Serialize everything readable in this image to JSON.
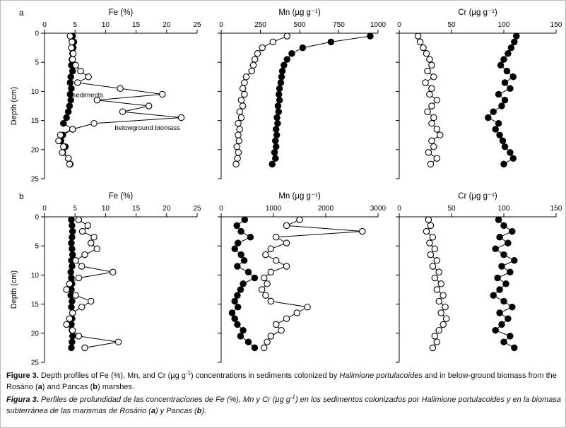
{
  "figure": {
    "ylabel": "Depth (cm)",
    "panel_labels": [
      "a",
      "b"
    ],
    "series_names": [
      "sediments",
      "belowground biomass"
    ],
    "colors": {
      "filled_marker": "#000000",
      "open_marker_fill": "#ffffff",
      "line": "#000000"
    }
  },
  "chart_data": [
    {
      "type": "scatter",
      "panel_letter": "a",
      "title": "Fe (%)",
      "xlim": [
        0,
        25
      ],
      "xticks": [
        0,
        5,
        10,
        15,
        20,
        25
      ],
      "ylim": [
        0,
        25
      ],
      "yticks": [
        0,
        5,
        10,
        15,
        20,
        25
      ],
      "show_y_tick_labels": true,
      "ylabel": "Depth (cm)",
      "series": [
        {
          "name": "sediments",
          "marker": "filled",
          "depths": [
            0.5,
            1.5,
            2.5,
            3.5,
            4.5,
            5.5,
            6.5,
            7.5,
            8.5,
            9.5,
            10.5,
            11.5,
            12.5,
            13.5,
            14.5,
            15.5,
            16.5,
            17.5,
            18.5,
            19.5,
            20.5,
            21.5,
            22.5
          ],
          "values": [
            4.6,
            4.8,
            4.7,
            4.6,
            4.5,
            4.4,
            4.6,
            4.3,
            4.2,
            4.4,
            4.2,
            4.3,
            4.1,
            3.9,
            3.6,
            3.1,
            4.6,
            3.0,
            2.7,
            3.4,
            3.0,
            3.9,
            4.2
          ]
        },
        {
          "name": "belowground biomass",
          "marker": "open",
          "depths": [
            0.5,
            1.5,
            2.5,
            3.5,
            4.5,
            5.5,
            6.5,
            7.5,
            8.5,
            9.5,
            10.5,
            11.5,
            12.5,
            13.5,
            14.5,
            15.5,
            16.5,
            17.5,
            18.5,
            19.5,
            20.5,
            21.5,
            22.5
          ],
          "values": [
            4.2,
            4.5,
            4.4,
            4.7,
            4.6,
            5.1,
            5.9,
            7.2,
            5.4,
            12.4,
            19.3,
            8.6,
            17.1,
            12.8,
            22.4,
            8.1,
            4.6,
            2.6,
            2.3,
            3.1,
            2.9,
            3.9,
            4.1
          ]
        }
      ],
      "annotations": [
        {
          "text": "sediments",
          "x": 4.6,
          "y": 11.0
        },
        {
          "text": "belowground biomass",
          "x": 11.5,
          "y": 16.6
        }
      ]
    },
    {
      "type": "scatter",
      "title": "Mn (µg g⁻¹)",
      "xlim": [
        0,
        1000
      ],
      "xticks": [
        0,
        250,
        500,
        750,
        1000
      ],
      "ylim": [
        0,
        25
      ],
      "yticks": [
        0,
        5,
        10,
        15,
        20,
        25
      ],
      "show_y_tick_labels": false,
      "series": [
        {
          "name": "sediments",
          "marker": "filled",
          "depths": [
            0.5,
            1.5,
            2.5,
            3.5,
            4.5,
            5.5,
            6.5,
            7.5,
            8.5,
            9.5,
            10.5,
            11.5,
            12.5,
            13.5,
            14.5,
            15.5,
            16.5,
            17.5,
            18.5,
            19.5,
            20.5,
            21.5,
            22.5
          ],
          "values": [
            950,
            700,
            520,
            450,
            420,
            400,
            390,
            385,
            380,
            372,
            368,
            372,
            362,
            366,
            356,
            360,
            350,
            354,
            346,
            350,
            340,
            346,
            325
          ]
        },
        {
          "name": "belowground biomass",
          "marker": "open",
          "depths": [
            0.5,
            1.5,
            2.5,
            3.5,
            4.5,
            5.5,
            6.5,
            7.5,
            8.5,
            9.5,
            10.5,
            11.5,
            12.5,
            13.5,
            14.5,
            15.5,
            16.5,
            17.5,
            18.5,
            19.5,
            20.5,
            21.5,
            22.5
          ],
          "values": [
            420,
            330,
            262,
            232,
            215,
            205,
            195,
            160,
            148,
            138,
            148,
            128,
            138,
            118,
            128,
            108,
            118,
            108,
            114,
            100,
            110,
            104,
            95
          ]
        }
      ],
      "annotations": []
    },
    {
      "type": "scatter",
      "title": "Cr (µg g⁻¹)",
      "xlim": [
        0,
        150
      ],
      "xticks": [
        0,
        50,
        100,
        150
      ],
      "ylim": [
        0,
        25
      ],
      "yticks": [
        0,
        5,
        10,
        15,
        20,
        25
      ],
      "show_y_tick_labels": false,
      "series": [
        {
          "name": "sediments",
          "marker": "filled",
          "depths": [
            0.5,
            1.5,
            2.5,
            3.5,
            4.5,
            5.5,
            6.5,
            7.5,
            8.5,
            9.5,
            10.5,
            11.5,
            12.5,
            13.5,
            14.5,
            15.5,
            16.5,
            17.5,
            18.5,
            19.5,
            20.5,
            21.5,
            22.5
          ],
          "values": [
            112,
            110,
            107,
            104,
            100,
            97,
            103,
            109,
            101,
            106,
            95,
            101,
            98,
            90,
            85,
            95,
            92,
            96,
            99,
            101,
            106,
            109,
            100
          ]
        },
        {
          "name": "belowground biomass",
          "marker": "open",
          "depths": [
            0.5,
            1.5,
            2.5,
            3.5,
            4.5,
            5.5,
            6.5,
            7.5,
            8.5,
            9.5,
            10.5,
            11.5,
            12.5,
            13.5,
            14.5,
            15.5,
            16.5,
            17.5,
            18.5,
            19.5,
            20.5,
            21.5,
            22.5
          ],
          "values": [
            18,
            20,
            23,
            26,
            29,
            31,
            27,
            33,
            25,
            31,
            29,
            36,
            31,
            27,
            33,
            31,
            36,
            39,
            31,
            33,
            28,
            36,
            30
          ]
        }
      ],
      "annotations": []
    },
    {
      "type": "scatter",
      "panel_letter": "b",
      "title": "Fe (%)",
      "xlim": [
        0,
        25
      ],
      "xticks": [
        0,
        5,
        10,
        15,
        20,
        25
      ],
      "ylim": [
        0,
        25
      ],
      "yticks": [
        0,
        5,
        10,
        15,
        20,
        25
      ],
      "show_y_tick_labels": true,
      "ylabel": "Depth (cm)",
      "series": [
        {
          "name": "sediments",
          "marker": "filled",
          "depths": [
            0.5,
            1.5,
            2.5,
            3.5,
            4.5,
            5.5,
            6.5,
            7.5,
            8.5,
            9.5,
            10.5,
            11.5,
            12.5,
            13.5,
            14.5,
            15.5,
            16.5,
            17.5,
            18.5,
            19.5,
            20.5,
            21.5,
            22.5
          ],
          "values": [
            4.4,
            4.5,
            4.6,
            4.5,
            4.4,
            4.5,
            4.6,
            4.4,
            4.5,
            4.3,
            4.4,
            4.5,
            4.4,
            4.3,
            4.5,
            4.4,
            4.6,
            4.5,
            4.4,
            4.5,
            4.6,
            4.5,
            4.4
          ]
        },
        {
          "name": "belowground biomass",
          "marker": "open",
          "depths": [
            0.5,
            1.5,
            2.5,
            3.5,
            4.5,
            5.5,
            6.5,
            7.5,
            8.5,
            9.5,
            10.5,
            11.5,
            12.5,
            13.5,
            14.5,
            15.5,
            16.5,
            17.5,
            18.5,
            19.5,
            20.5,
            21.5,
            22.5
          ],
          "values": [
            5.6,
            7.1,
            6.2,
            8.1,
            7.6,
            8.6,
            6.6,
            5.1,
            6.1,
            11.2,
            5.6,
            4.1,
            3.6,
            5.1,
            7.6,
            6.1,
            4.6,
            4.1,
            3.6,
            4.6,
            5.6,
            12.1,
            6.6
          ]
        }
      ],
      "annotations": []
    },
    {
      "type": "scatter",
      "title": "Mn (µg g⁻¹)",
      "xlim": [
        0,
        3000
      ],
      "xticks": [
        0,
        1000,
        2000,
        3000
      ],
      "ylim": [
        0,
        25
      ],
      "yticks": [
        0,
        5,
        10,
        15,
        20,
        25
      ],
      "show_y_tick_labels": false,
      "series": [
        {
          "name": "sediments",
          "marker": "filled",
          "depths": [
            0.5,
            1.5,
            2.5,
            3.5,
            4.5,
            5.5,
            6.5,
            7.5,
            8.5,
            9.5,
            10.5,
            11.5,
            12.5,
            13.5,
            14.5,
            15.5,
            16.5,
            17.5,
            18.5,
            19.5,
            20.5,
            21.5,
            22.5
          ],
          "values": [
            450,
            300,
            380,
            560,
            320,
            260,
            380,
            440,
            310,
            520,
            640,
            420,
            370,
            310,
            260,
            320,
            210,
            260,
            310,
            420,
            370,
            520,
            640
          ]
        },
        {
          "name": "belowground biomass",
          "marker": "open",
          "depths": [
            0.5,
            1.5,
            2.5,
            3.5,
            4.5,
            5.5,
            6.5,
            7.5,
            8.5,
            9.5,
            10.5,
            11.5,
            12.5,
            13.5,
            14.5,
            15.5,
            16.5,
            17.5,
            18.5,
            19.5,
            20.5,
            21.5,
            22.5
          ],
          "values": [
            1500,
            1250,
            2700,
            1050,
            1250,
            950,
            850,
            1050,
            1250,
            950,
            820,
            880,
            780,
            850,
            950,
            1650,
            1450,
            1250,
            1050,
            1150,
            950,
            880,
            820
          ]
        }
      ],
      "annotations": []
    },
    {
      "type": "scatter",
      "title": "Cr (µg g⁻¹)",
      "xlim": [
        0,
        150
      ],
      "xticks": [
        0,
        50,
        100,
        150
      ],
      "ylim": [
        0,
        25
      ],
      "yticks": [
        0,
        5,
        10,
        15,
        20,
        25
      ],
      "show_y_tick_labels": false,
      "series": [
        {
          "name": "sediments",
          "marker": "filled",
          "depths": [
            0.5,
            1.5,
            2.5,
            3.5,
            4.5,
            5.5,
            6.5,
            7.5,
            8.5,
            9.5,
            10.5,
            11.5,
            12.5,
            13.5,
            14.5,
            15.5,
            16.5,
            17.5,
            18.5,
            19.5,
            20.5,
            21.5,
            22.5
          ],
          "values": [
            95,
            100,
            108,
            96,
            104,
            92,
            100,
            110,
            98,
            106,
            94,
            102,
            96,
            90,
            100,
            108,
            96,
            104,
            98,
            92,
            106,
            100,
            110
          ]
        },
        {
          "name": "belowground biomass",
          "marker": "open",
          "depths": [
            0.5,
            1.5,
            2.5,
            3.5,
            4.5,
            5.5,
            6.5,
            7.5,
            8.5,
            9.5,
            10.5,
            11.5,
            12.5,
            13.5,
            14.5,
            15.5,
            16.5,
            17.5,
            18.5,
            19.5,
            20.5,
            21.5,
            22.5
          ],
          "values": [
            28,
            30,
            26,
            32,
            29,
            34,
            30,
            36,
            32,
            38,
            34,
            40,
            36,
            42,
            38,
            44,
            40,
            45,
            42,
            38,
            34,
            36,
            32
          ]
        }
      ],
      "annotations": []
    }
  ],
  "caption": {
    "english": {
      "segments": [
        {
          "t": "Figure 3.",
          "b": true
        },
        {
          "t": " Depth profiles of Fe (%), Mn, and Cr (µg g"
        },
        {
          "t": "-1",
          "sup": true
        },
        {
          "t": ") concentrations in sediments colonized by "
        },
        {
          "t": "Halimione portulacoides",
          "i": true
        },
        {
          "t": " and in below-ground biomass from the Rosário ("
        },
        {
          "t": "a",
          "b": true
        },
        {
          "t": ") and Pancas ("
        },
        {
          "t": "b",
          "b": true
        },
        {
          "t": ") marshes."
        }
      ]
    },
    "spanish": {
      "segments": [
        {
          "t": "Figura 3.",
          "b": true,
          "i": true
        },
        {
          "t": " Perfiles de profundidad de las concentraciones de Fe (%), Mn y Cr (µg g",
          "i": true
        },
        {
          "t": "-1",
          "i": true,
          "sup": true
        },
        {
          "t": ") en los sedimentos colonizados por ",
          "i": true
        },
        {
          "t": "Halimione portulacoides",
          "i": true
        },
        {
          "t": " y en la biomasa subterránea de las marismas de Rosário (",
          "i": true
        },
        {
          "t": "a",
          "b": true,
          "i": true
        },
        {
          "t": ") y Pancas (",
          "i": true
        },
        {
          "t": "b",
          "b": true,
          "i": true
        },
        {
          "t": ").",
          "i": true
        }
      ]
    }
  }
}
